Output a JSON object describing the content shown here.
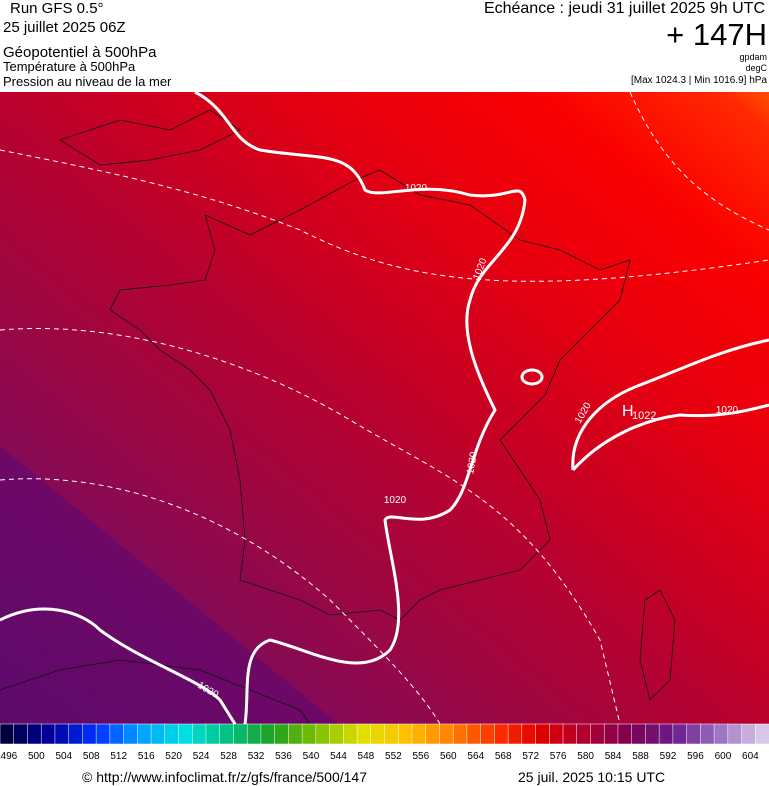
{
  "header": {
    "run": "Run GFS 0.5°",
    "date": "25 juillet 2025 06Z",
    "field1": "Géopotentiel à 500hPa",
    "field2": "Température à 500hPa",
    "field3": "Pression au niveau de la mer",
    "valid": "Echéance : jeudi 31 juillet 2025 9h UTC",
    "lead": "+ 147H",
    "unit1": "gpdam",
    "unit2": "degC",
    "range": "[Max 1024.3 | Min 1016.9] hPa"
  },
  "map": {
    "contour_labels": [
      "1020",
      "1020",
      "1020",
      "1020",
      "1020",
      "1020",
      "1020"
    ],
    "high": "H",
    "high_value": "1022"
  },
  "colorbar": {
    "labels": [
      496,
      500,
      504,
      508,
      512,
      516,
      520,
      524,
      528,
      532,
      536,
      540,
      544,
      548,
      552,
      556,
      560,
      564,
      568,
      572,
      576,
      580,
      584,
      588,
      592,
      596,
      600,
      604
    ]
  },
  "footer": {
    "url": "© http://www.infoclimat.fr/z/gfs/france/500/147",
    "time": "25 juil. 2025 10:15 UTC"
  }
}
